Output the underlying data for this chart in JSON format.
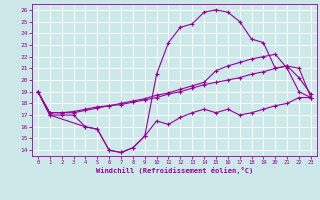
{
  "xlabel": "Windchill (Refroidissement éolien,°C)",
  "xlim": [
    -0.5,
    23.5
  ],
  "ylim": [
    13.5,
    26.5
  ],
  "xticks": [
    0,
    1,
    2,
    3,
    4,
    5,
    6,
    7,
    8,
    9,
    10,
    11,
    12,
    13,
    14,
    15,
    16,
    17,
    18,
    19,
    20,
    21,
    22,
    23
  ],
  "yticks": [
    14,
    15,
    16,
    17,
    18,
    19,
    20,
    21,
    22,
    23,
    24,
    25,
    26
  ],
  "bg_color": "#cce8e8",
  "line_color": "#990099",
  "grid_color": "#ffffff",
  "line1_x": [
    0,
    1,
    2,
    3,
    4,
    5,
    6,
    7,
    8,
    9,
    10,
    11,
    12,
    13,
    14,
    15,
    16,
    17,
    18,
    19,
    20,
    21,
    22,
    23
  ],
  "line1_y": [
    19,
    17,
    17,
    17,
    16,
    15.8,
    14.0,
    13.8,
    14.2,
    15.2,
    16.5,
    16.2,
    16.8,
    17.2,
    17.5,
    17.2,
    17.5,
    17.0,
    17.2,
    17.5,
    17.8,
    18.0,
    18.5,
    18.5
  ],
  "line2_x": [
    0,
    1,
    2,
    3,
    4,
    5,
    6,
    7,
    8,
    9,
    10,
    11,
    12,
    13,
    14,
    15,
    16,
    17,
    18,
    19,
    20,
    21,
    22,
    23
  ],
  "line2_y": [
    19,
    17.2,
    17.2,
    17.3,
    17.5,
    17.7,
    17.8,
    17.9,
    18.1,
    18.3,
    18.5,
    18.8,
    19.0,
    19.3,
    19.6,
    19.8,
    20.0,
    20.2,
    20.5,
    20.7,
    21.0,
    21.2,
    21.0,
    18.5
  ],
  "line3_x": [
    0,
    1,
    4,
    5,
    6,
    7,
    8,
    9,
    10,
    11,
    12,
    13,
    14,
    15,
    16,
    17,
    18,
    19,
    20,
    21,
    22,
    23
  ],
  "line3_y": [
    19,
    17,
    16,
    15.8,
    14.0,
    13.8,
    14.2,
    15.2,
    20.5,
    23.2,
    24.5,
    24.8,
    25.8,
    26.0,
    25.8,
    25.0,
    23.5,
    23.2,
    21.0,
    21.2,
    20.2,
    18.8
  ],
  "line4_x": [
    0,
    1,
    2,
    3,
    4,
    5,
    6,
    7,
    8,
    9,
    10,
    11,
    12,
    13,
    14,
    15,
    16,
    17,
    18,
    19,
    20,
    21,
    22,
    23
  ],
  "line4_y": [
    19,
    17.2,
    17.2,
    17.2,
    17.4,
    17.6,
    17.8,
    18.0,
    18.2,
    18.4,
    18.7,
    18.9,
    19.2,
    19.5,
    19.8,
    20.8,
    21.2,
    21.5,
    21.8,
    22.0,
    22.2,
    21.0,
    19.0,
    18.5
  ]
}
